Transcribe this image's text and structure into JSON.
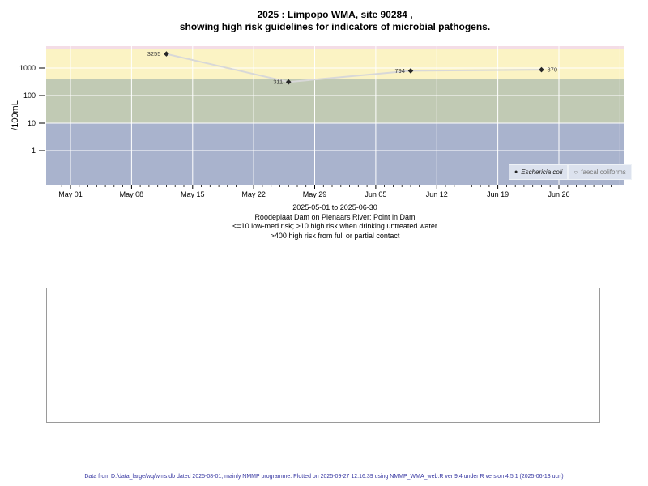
{
  "title": {
    "lines": [
      "2025 : Limpopo WMA, site 90284 ,",
      "showing high risk guidelines for indicators of microbial pathogens."
    ]
  },
  "chart_data": {
    "type": "line",
    "title": "2025 : Limpopo WMA, site 90284 , showing high risk guidelines for indicators of microbial pathogens.",
    "ylabel": "/100mL",
    "y_scale": "log",
    "ylim": [
      0.06,
      6000
    ],
    "y_ticks": [
      1000,
      100,
      10,
      1
    ],
    "x_start": "2025-05-01",
    "x_end": "2025-06-30",
    "grid": true,
    "legend_position": "bottom-right",
    "top_strip_color": "#f4dde6",
    "x_ticks": [
      {
        "date": "2025-05-01",
        "label": "May 01"
      },
      {
        "date": "2025-05-08",
        "label": "May 08"
      },
      {
        "date": "2025-05-15",
        "label": "May 15"
      },
      {
        "date": "2025-05-22",
        "label": "May 22"
      },
      {
        "date": "2025-05-29",
        "label": "May 29"
      },
      {
        "date": "2025-06-05",
        "label": "Jun 05"
      },
      {
        "date": "2025-06-12",
        "label": "Jun 12"
      },
      {
        "date": "2025-06-19",
        "label": "Jun 19"
      },
      {
        "date": "2025-06-26",
        "label": "Jun 26"
      },
      {
        "date": "2025-07-03",
        "label": ""
      }
    ],
    "bands": [
      {
        "label": ">400 high risk from full or partial contact",
        "min": 400,
        "color": "#fbf3c4"
      },
      {
        "label": ">10 high risk when drinking untreated water",
        "min": 10,
        "color": "#c1cab4"
      },
      {
        "label": "<=10 low-med risk",
        "min": null,
        "color": "#a9b3cd"
      }
    ],
    "series": [
      {
        "name": "Eschericia coli",
        "marker": "filled-diamond",
        "line_color": "#d8d8d8",
        "points": [
          {
            "date": "2025-05-12",
            "value": 3255,
            "label_side": "left"
          },
          {
            "date": "2025-05-26",
            "value": 311,
            "label_side": "left"
          },
          {
            "date": "2025-06-09",
            "value": 794,
            "label_side": "left"
          },
          {
            "date": "2025-06-24",
            "value": 870,
            "label_side": "right"
          }
        ]
      },
      {
        "name": "faecal coliforms",
        "marker": "open-circle",
        "line_color": "#d8d8d8",
        "points": []
      }
    ]
  },
  "legend": {
    "items": [
      {
        "label": "Eschericia coli",
        "marker": "filled-dot",
        "italic": true
      },
      {
        "label": "faecal coliforms",
        "marker": "open-circle",
        "italic": false
      }
    ]
  },
  "caption": {
    "lines": [
      "2025-05-01 to 2025-06-30",
      "Roodeplaat Dam on Pienaars River: Point in Dam",
      "<=10 low-med risk; >10 high risk when drinking untreated water",
      ">400 high risk from full or partial contact"
    ]
  },
  "footer": {
    "text": "Data from D:/data_large/wq/wms.db dated 2025-08-01, mainly NMMP programme. Plotted on 2025-09-27 12:16:39 using NMMP_WMA_web.R ver 9.4 under R version 4.5.1 (2025-06-13 ucrt)"
  }
}
